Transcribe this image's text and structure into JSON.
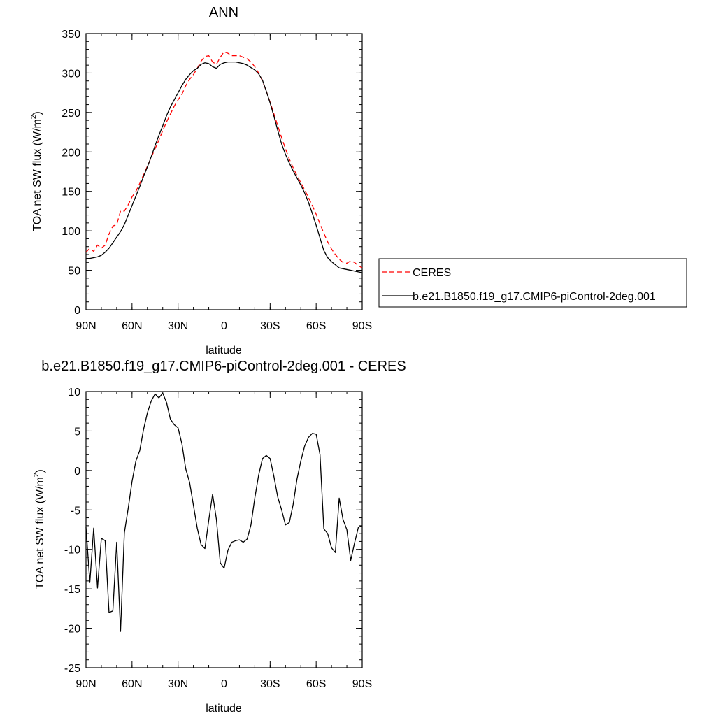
{
  "chart_data": [
    {
      "type": "line",
      "title": "ANN",
      "xlabel": "latitude",
      "ylabel": "TOA net SW flux (W/m",
      "ylabel_sup": "2",
      "ylabel_close": ")",
      "xlim": [
        90,
        -90
      ],
      "ylim": [
        0,
        350
      ],
      "x_ticks": [
        {
          "value": 90,
          "label": "90N"
        },
        {
          "value": 60,
          "label": "60N"
        },
        {
          "value": 30,
          "label": "30N"
        },
        {
          "value": 0,
          "label": "0"
        },
        {
          "value": -30,
          "label": "30S"
        },
        {
          "value": -60,
          "label": "60S"
        },
        {
          "value": -90,
          "label": "90S"
        }
      ],
      "y_ticks": [
        0,
        50,
        100,
        150,
        200,
        250,
        300,
        350
      ],
      "legend": {
        "placement": "right",
        "entries": [
          {
            "series": 0,
            "label": "CERES"
          },
          {
            "series": 1,
            "label": "b.e21.B1850.f19_g17.CMIP6-piControl-2deg.001"
          }
        ]
      },
      "series": [
        {
          "name": "CERES",
          "color": "#ff0000",
          "dash": true,
          "x": [
            90,
            87.5,
            85,
            82.5,
            80,
            77.5,
            75,
            72.5,
            70,
            67.5,
            65,
            62.5,
            60,
            57.5,
            55,
            52.5,
            50,
            47.5,
            45,
            42.5,
            40,
            37.5,
            35,
            32.5,
            30,
            27.5,
            25,
            22.5,
            20,
            17.5,
            15,
            12.5,
            10,
            7.5,
            5,
            2.5,
            0,
            -2.5,
            -5,
            -7.5,
            -10,
            -12.5,
            -15,
            -17.5,
            -20,
            -22.5,
            -25,
            -27.5,
            -30,
            -32.5,
            -35,
            -37.5,
            -40,
            -42.5,
            -45,
            -47.5,
            -50,
            -52.5,
            -55,
            -57.5,
            -60,
            -62.5,
            -65,
            -67.5,
            -70,
            -72.5,
            -75,
            -77.5,
            -80,
            -82.5,
            -85,
            -87.5,
            -90
          ],
          "y": [
            73,
            78,
            74,
            82,
            78,
            82,
            96,
            106,
            108,
            125,
            125,
            133,
            143,
            150,
            160,
            171,
            182,
            193,
            204,
            215,
            227,
            238,
            248,
            258,
            266,
            273,
            284,
            292,
            298,
            306,
            315,
            321,
            322,
            314,
            311,
            320,
            327,
            325,
            322,
            322,
            322,
            320,
            318,
            314,
            308,
            300,
            290,
            277,
            263,
            248,
            233,
            218,
            204,
            191,
            180,
            170,
            161,
            152,
            142,
            132,
            121,
            109,
            97,
            86,
            77,
            70,
            64,
            60,
            59,
            62,
            60,
            56,
            53
          ]
        },
        {
          "name": "b.e21.B1850.f19_g17.CMIP6-piControl-2deg.001",
          "color": "#000000",
          "dash": false,
          "x": [
            90,
            87.5,
            85,
            82.5,
            80,
            77.5,
            75,
            72.5,
            70,
            67.5,
            65,
            62.5,
            60,
            57.5,
            55,
            52.5,
            50,
            47.5,
            45,
            42.5,
            40,
            37.5,
            35,
            32.5,
            30,
            27.5,
            25,
            22.5,
            20,
            17.5,
            15,
            12.5,
            10,
            7.5,
            5,
            2.5,
            0,
            -2.5,
            -5,
            -7.5,
            -10,
            -12.5,
            -15,
            -17.5,
            -20,
            -22.5,
            -25,
            -27.5,
            -30,
            -32.5,
            -35,
            -37.5,
            -40,
            -42.5,
            -45,
            -47.5,
            -50,
            -52.5,
            -55,
            -57.5,
            -60,
            -62.5,
            -65,
            -67.5,
            -70,
            -72.5,
            -75,
            -77.5,
            -80,
            -82.5,
            -85,
            -87.5,
            -90
          ],
          "y": [
            65,
            65,
            66,
            67,
            69,
            73,
            78,
            85,
            92,
            99,
            108,
            120,
            132,
            144,
            156,
            169,
            181,
            194,
            208,
            221,
            233,
            246,
            257,
            266,
            275,
            284,
            292,
            298,
            303,
            306,
            311,
            313,
            312,
            308,
            306,
            311,
            313,
            314,
            314,
            314,
            313,
            312,
            310,
            307,
            304,
            299,
            291,
            277,
            262,
            245,
            227,
            210,
            197,
            186,
            176,
            167,
            158,
            148,
            136,
            122,
            107,
            91,
            75,
            66,
            61,
            57,
            53,
            52,
            51,
            50,
            49,
            48,
            47
          ]
        }
      ]
    },
    {
      "type": "line",
      "title": "b.e21.B1850.f19_g17.CMIP6-piControl-2deg.001 - CERES",
      "xlabel": "latitude",
      "ylabel": "TOA net SW flux (W/m",
      "ylabel_sup": "2",
      "ylabel_close": ")",
      "xlim": [
        90,
        -90
      ],
      "ylim": [
        -25,
        10
      ],
      "x_ticks": [
        {
          "value": 90,
          "label": "90N"
        },
        {
          "value": 60,
          "label": "60N"
        },
        {
          "value": 30,
          "label": "30N"
        },
        {
          "value": 0,
          "label": "0"
        },
        {
          "value": -30,
          "label": "30S"
        },
        {
          "value": -60,
          "label": "60S"
        },
        {
          "value": -90,
          "label": "90S"
        }
      ],
      "y_ticks": [
        -25,
        -20,
        -15,
        -10,
        -5,
        0,
        5,
        10
      ],
      "series": [
        {
          "color": "#000000",
          "dash": false,
          "x": [
            90,
            87.5,
            85,
            82.5,
            80,
            77.5,
            75,
            72.5,
            70,
            67.5,
            65,
            62.5,
            60,
            57.5,
            55,
            52.5,
            50,
            47.5,
            45,
            42.5,
            40,
            37.5,
            35,
            32.5,
            30,
            27.5,
            25,
            22.5,
            20,
            17.5,
            15,
            12.5,
            10,
            7.5,
            5,
            2.5,
            0,
            -2.5,
            -5,
            -7.5,
            -10,
            -12.5,
            -15,
            -17.5,
            -20,
            -22.5,
            -25,
            -27.5,
            -30,
            -32.5,
            -35,
            -37.5,
            -40,
            -42.5,
            -45,
            -47.5,
            -50,
            -52.5,
            -55,
            -57.5,
            -60,
            -62.5,
            -65,
            -67.5,
            -70,
            -72.5,
            -75,
            -77.5,
            -80,
            -82.5,
            -85,
            -87.5,
            -90
          ],
          "y": [
            -7.2,
            -14.2,
            -7.3,
            -14.9,
            -8.6,
            -8.9,
            -18,
            -17.8,
            -9.1,
            -20.4,
            -7.9,
            -4.8,
            -1.4,
            1.2,
            2.5,
            5.2,
            7.3,
            8.8,
            9.7,
            9.2,
            9.8,
            8.6,
            6.5,
            5.8,
            5.4,
            3.4,
            0.2,
            -1.5,
            -4.4,
            -7.3,
            -9.4,
            -9.9,
            -6.3,
            -3,
            -6.2,
            -11.7,
            -12.4,
            -10.1,
            -9.1,
            -8.9,
            -8.8,
            -9.1,
            -8.7,
            -6.9,
            -3.5,
            -0.6,
            1.5,
            1.9,
            1.5,
            -0.8,
            -3.4,
            -5,
            -6.9,
            -6.6,
            -4.3,
            -1.1,
            1.2,
            3.1,
            4.2,
            4.7,
            4.6,
            2,
            -7.4,
            -8,
            -9.8,
            -10.4,
            -3.5,
            -6.2,
            -7.5,
            -11.4,
            -9.2,
            -7.2,
            -7
          ]
        }
      ]
    }
  ]
}
